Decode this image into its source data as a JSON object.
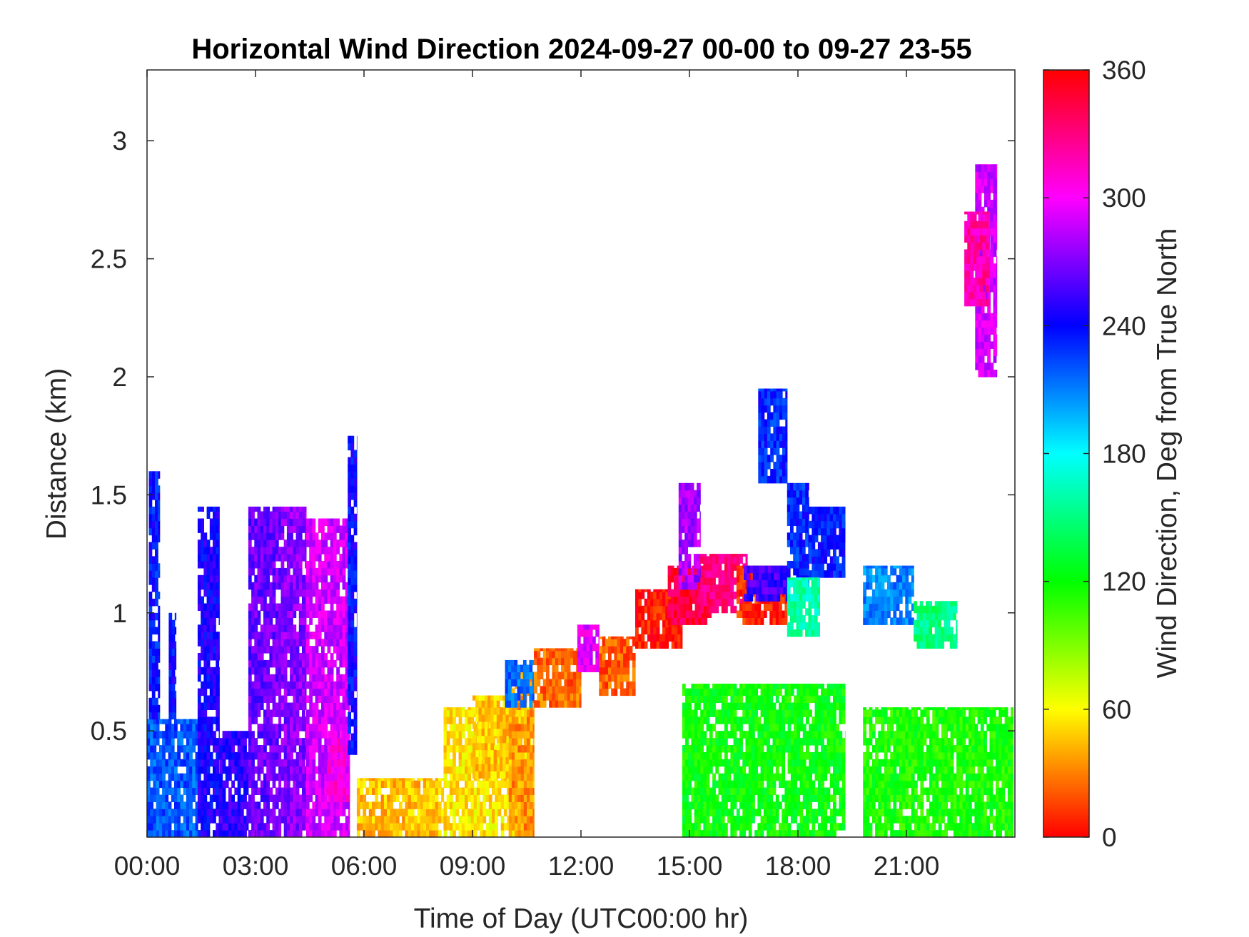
{
  "chart_data": {
    "type": "heatmap",
    "title": "Horizontal Wind Direction 2024-09-27 00-00 to 09-27 23-55",
    "xlabel": "Time of Day (UTC00:00 hr)",
    "ylabel": "Distance (km)",
    "colorbar_label": "Wind Direction, Deg from True North",
    "x_range_hours": [
      0,
      24
    ],
    "x_ticks": [
      0,
      3,
      6,
      9,
      12,
      15,
      18,
      21
    ],
    "x_tick_labels": [
      "00:00",
      "03:00",
      "06:00",
      "09:00",
      "12:00",
      "15:00",
      "18:00",
      "21:00"
    ],
    "y_range_km": [
      0.05,
      3.3
    ],
    "y_ticks": [
      0.5,
      1,
      1.5,
      2,
      2.5,
      3
    ],
    "y_tick_labels": [
      "0.5",
      "1",
      "1.5",
      "2",
      "2.5",
      "3"
    ],
    "color_range_deg": [
      0,
      360
    ],
    "colorbar_ticks": [
      0,
      60,
      120,
      180,
      240,
      300,
      360
    ],
    "colorbar_tick_labels": [
      "0",
      "60",
      "120",
      "180",
      "240",
      "300",
      "360"
    ],
    "colormap": "hsv",
    "grid": false,
    "regions": [
      {
        "t": [
          0.0,
          1.4
        ],
        "z": [
          0.05,
          0.55
        ],
        "dir": 220
      },
      {
        "t": [
          0.05,
          0.35
        ],
        "z": [
          0.55,
          1.6
        ],
        "dir": 235
      },
      {
        "t": [
          0.6,
          0.8
        ],
        "z": [
          0.55,
          1.0
        ],
        "dir": 240
      },
      {
        "t": [
          1.4,
          2.0
        ],
        "z": [
          0.05,
          1.45
        ],
        "dir": 245
      },
      {
        "t": [
          2.0,
          2.8
        ],
        "z": [
          0.05,
          0.5
        ],
        "dir": 250
      },
      {
        "t": [
          2.8,
          3.7
        ],
        "z": [
          0.05,
          1.45
        ],
        "dir": 265
      },
      {
        "t": [
          3.7,
          4.4
        ],
        "z": [
          0.05,
          1.45
        ],
        "dir": 272
      },
      {
        "t": [
          4.4,
          5.6
        ],
        "z": [
          0.05,
          1.4
        ],
        "dir": 290
      },
      {
        "t": [
          5.0,
          5.6
        ],
        "z": [
          0.2,
          0.5
        ],
        "dir": 305
      },
      {
        "t": [
          5.55,
          5.8
        ],
        "z": [
          0.4,
          1.75
        ],
        "dir": 240
      },
      {
        "t": [
          5.8,
          8.2
        ],
        "z": [
          0.05,
          0.3
        ],
        "dir": 45
      },
      {
        "t": [
          8.2,
          10.7
        ],
        "z": [
          0.05,
          0.6
        ],
        "dir": 55
      },
      {
        "t": [
          9.0,
          10.2
        ],
        "z": [
          0.3,
          0.65
        ],
        "dir": 48
      },
      {
        "t": [
          10.0,
          10.7
        ],
        "z": [
          0.05,
          0.75
        ],
        "dir": 35
      },
      {
        "t": [
          9.9,
          10.7
        ],
        "z": [
          0.6,
          0.8
        ],
        "dir": 215
      },
      {
        "t": [
          10.7,
          12.0
        ],
        "z": [
          0.6,
          0.85
        ],
        "dir": 25
      },
      {
        "t": [
          11.9,
          12.5
        ],
        "z": [
          0.75,
          0.95
        ],
        "dir": 295
      },
      {
        "t": [
          12.5,
          13.5
        ],
        "z": [
          0.65,
          0.9
        ],
        "dir": 22
      },
      {
        "t": [
          13.5,
          14.8
        ],
        "z": [
          0.85,
          1.1
        ],
        "dir": 5
      },
      {
        "t": [
          14.4,
          15.6
        ],
        "z": [
          0.95,
          1.2
        ],
        "dir": 345
      },
      {
        "t": [
          14.7,
          15.3
        ],
        "z": [
          1.1,
          1.55
        ],
        "dir": 280
      },
      {
        "t": [
          15.3,
          16.6
        ],
        "z": [
          1.0,
          1.25
        ],
        "dir": 330
      },
      {
        "t": [
          16.3,
          17.7
        ],
        "z": [
          0.95,
          1.2
        ],
        "dir": 10
      },
      {
        "t": [
          16.5,
          17.7
        ],
        "z": [
          1.05,
          1.2
        ],
        "dir": 255
      },
      {
        "t": [
          16.9,
          17.7
        ],
        "z": [
          1.55,
          1.95
        ],
        "dir": 232
      },
      {
        "t": [
          17.7,
          18.3
        ],
        "z": [
          1.1,
          1.55
        ],
        "dir": 232
      },
      {
        "t": [
          18.3,
          19.3
        ],
        "z": [
          1.15,
          1.45
        ],
        "dir": 235
      },
      {
        "t": [
          17.7,
          18.6
        ],
        "z": [
          0.9,
          1.15
        ],
        "dir": 160
      },
      {
        "t": [
          14.8,
          19.3
        ],
        "z": [
          0.05,
          0.7
        ],
        "dir": 120
      },
      {
        "t": [
          19.8,
          21.2
        ],
        "z": [
          0.95,
          1.2
        ],
        "dir": 210
      },
      {
        "t": [
          21.2,
          22.4
        ],
        "z": [
          0.85,
          1.05
        ],
        "dir": 150
      },
      {
        "t": [
          19.8,
          23.95
        ],
        "z": [
          0.05,
          0.6
        ],
        "dir": 115
      },
      {
        "t": [
          22.9,
          23.5
        ],
        "z": [
          2.0,
          2.9
        ],
        "dir": 290
      },
      {
        "t": [
          22.6,
          23.3
        ],
        "z": [
          2.3,
          2.7
        ],
        "dir": 320
      }
    ]
  }
}
